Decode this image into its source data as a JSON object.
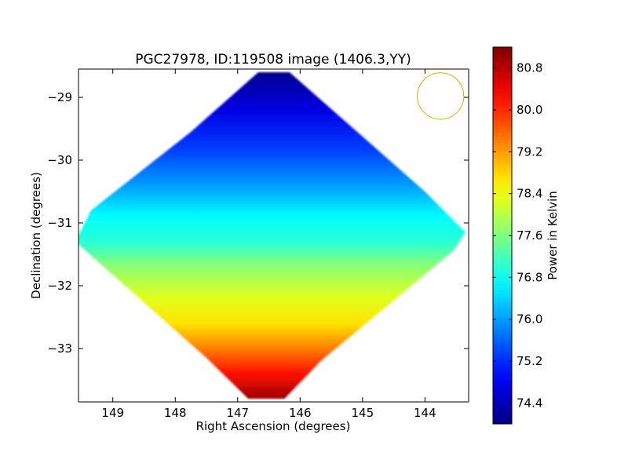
{
  "chart_data": {
    "type": "heatmap",
    "title": "PGC27978, ID:119508 image (1406.3,YY)",
    "xlabel": "Right Ascension (degrees)",
    "ylabel": "Declination (degrees)",
    "xlim": [
      149.55,
      143.3
    ],
    "ylim": [
      -33.85,
      -28.55
    ],
    "x_ticks": [
      149,
      148,
      147,
      146,
      145,
      144
    ],
    "x_tick_labels": [
      "149",
      "148",
      "147",
      "146",
      "145",
      "144"
    ],
    "y_ticks": [
      -29,
      -30,
      -31,
      -32,
      -33
    ],
    "y_tick_labels": [
      "−29",
      "−30",
      "−31",
      "−32",
      "−33"
    ],
    "colorbar": {
      "label": "Power in Kelvin",
      "range": [
        74.0,
        81.2
      ],
      "ticks": [
        74.4,
        75.2,
        76.0,
        76.8,
        77.6,
        78.4,
        79.2,
        80.0,
        80.8
      ],
      "tick_labels": [
        "74.4",
        "75.2",
        "76.0",
        "76.8",
        "77.6",
        "78.4",
        "79.2",
        "80.0",
        "80.8"
      ],
      "colormap": "jet"
    },
    "footprint_outline": [
      [
        146.67,
        -28.6
      ],
      [
        146.17,
        -28.6
      ],
      [
        144.0,
        -30.5
      ],
      [
        143.35,
        -31.15
      ],
      [
        143.55,
        -31.45
      ],
      [
        145.67,
        -33.2
      ],
      [
        146.25,
        -33.8
      ],
      [
        146.83,
        -33.8
      ],
      [
        147.5,
        -33.15
      ],
      [
        149.6,
        -31.3
      ],
      [
        149.35,
        -30.8
      ],
      [
        147.75,
        -29.55
      ]
    ],
    "power_profile": {
      "declination": [
        -28.6,
        -29.2,
        -29.8,
        -30.4,
        -30.9,
        -31.3,
        -31.7,
        -32.2,
        -32.6,
        -33.0,
        -33.4,
        -33.8
      ],
      "power_kelvin": [
        74.1,
        74.7,
        75.3,
        76.0,
        76.7,
        77.0,
        77.7,
        78.3,
        78.7,
        79.4,
        80.2,
        81.0
      ]
    },
    "beam_circle": {
      "ra": 143.75,
      "dec": -28.98,
      "radius_deg": 0.37,
      "color": "#bbbb00"
    }
  }
}
